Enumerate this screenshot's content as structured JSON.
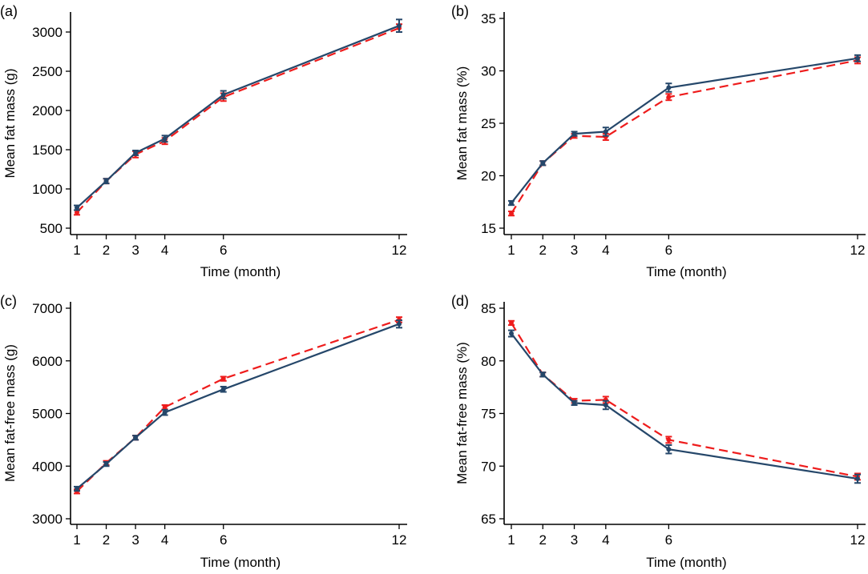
{
  "chart_data": [
    {
      "type": "line",
      "panel_label": "(a)",
      "xlabel": "Time (month)",
      "ylabel": "Mean fat mass (g)",
      "x": [
        1,
        2,
        3,
        4,
        6,
        12
      ],
      "x_ticks": [
        "1",
        "2",
        "3",
        "4",
        "6",
        "12"
      ],
      "y_ticks": [
        500,
        1000,
        1500,
        2000,
        2500,
        3000
      ],
      "ylim": [
        500,
        3000
      ],
      "grid": false,
      "series": [
        {
          "name": "red-dashed",
          "color": "#ee1c1c",
          "style": "dashed",
          "values": [
            700,
            1100,
            1440,
            1610,
            2170,
            3050
          ],
          "errors": [
            30,
            30,
            40,
            40,
            50,
            50
          ]
        },
        {
          "name": "blue-solid",
          "color": "#25476a",
          "style": "solid",
          "values": [
            760,
            1100,
            1460,
            1640,
            2200,
            3080
          ],
          "errors": [
            30,
            30,
            30,
            40,
            50,
            80
          ]
        }
      ]
    },
    {
      "type": "line",
      "panel_label": "(b)",
      "xlabel": "Time (month)",
      "ylabel": "Mean fat mass (%)",
      "x": [
        1,
        2,
        3,
        4,
        6,
        12
      ],
      "x_ticks": [
        "1",
        "2",
        "3",
        "4",
        "6",
        "12"
      ],
      "y_ticks": [
        15,
        20,
        25,
        30,
        35
      ],
      "ylim": [
        15,
        35
      ],
      "grid": false,
      "series": [
        {
          "name": "red-dashed",
          "color": "#ee1c1c",
          "style": "dashed",
          "values": [
            16.4,
            21.2,
            23.8,
            23.7,
            27.5,
            31.0
          ],
          "errors": [
            0.2,
            0.2,
            0.2,
            0.3,
            0.3,
            0.3
          ]
        },
        {
          "name": "blue-solid",
          "color": "#25476a",
          "style": "solid",
          "values": [
            17.4,
            21.2,
            24.0,
            24.2,
            28.4,
            31.2
          ],
          "errors": [
            0.2,
            0.2,
            0.2,
            0.4,
            0.4,
            0.3
          ]
        }
      ]
    },
    {
      "type": "line",
      "panel_label": "(c)",
      "xlabel": "Time (month)",
      "ylabel": "Mean fat-free mass (g)",
      "x": [
        1,
        2,
        3,
        4,
        6,
        12
      ],
      "x_ticks": [
        "1",
        "2",
        "3",
        "4",
        "6",
        "12"
      ],
      "y_ticks": [
        3000,
        4000,
        5000,
        6000,
        7000
      ],
      "ylim": [
        3000,
        7000
      ],
      "grid": false,
      "series": [
        {
          "name": "red-dashed",
          "color": "#ee1c1c",
          "style": "dashed",
          "values": [
            3520,
            4060,
            4540,
            5120,
            5660,
            6780
          ],
          "errors": [
            40,
            40,
            40,
            40,
            40,
            50
          ]
        },
        {
          "name": "blue-solid",
          "color": "#25476a",
          "style": "solid",
          "values": [
            3570,
            4040,
            4540,
            5020,
            5460,
            6700
          ],
          "errors": [
            40,
            40,
            40,
            50,
            50,
            70
          ]
        }
      ]
    },
    {
      "type": "line",
      "panel_label": "(d)",
      "xlabel": "Time (month)",
      "ylabel": "Mean fat-free mass (%)",
      "x": [
        1,
        2,
        3,
        4,
        6,
        12
      ],
      "x_ticks": [
        "1",
        "2",
        "3",
        "4",
        "6",
        "12"
      ],
      "y_ticks": [
        65,
        70,
        75,
        80,
        85
      ],
      "ylim": [
        65,
        85
      ],
      "grid": false,
      "series": [
        {
          "name": "red-dashed",
          "color": "#ee1c1c",
          "style": "dashed",
          "values": [
            83.6,
            78.7,
            76.2,
            76.3,
            72.5,
            69.0
          ],
          "errors": [
            0.2,
            0.2,
            0.2,
            0.3,
            0.3,
            0.3
          ]
        },
        {
          "name": "blue-solid",
          "color": "#25476a",
          "style": "solid",
          "values": [
            82.6,
            78.7,
            76.0,
            75.8,
            71.6,
            68.8
          ],
          "errors": [
            0.3,
            0.2,
            0.2,
            0.4,
            0.4,
            0.4
          ]
        }
      ]
    }
  ]
}
